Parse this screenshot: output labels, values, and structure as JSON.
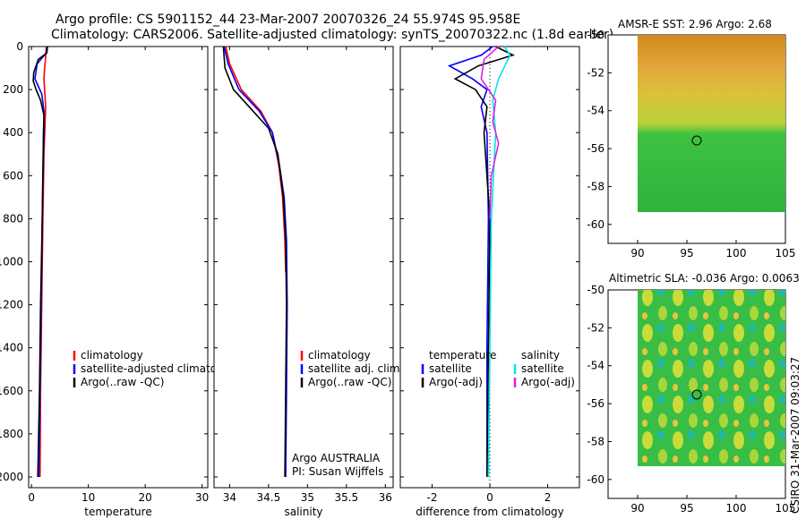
{
  "figure": {
    "title_line1": "Argo profile: CS 5901152_44 23-Mar-2007 20070326_24 55.974S 95.958E",
    "title_line2": "Climatology: CARS2006. Satellite-adjusted climatology: synTS_20070322.nc (1.8d earlier)",
    "credit": "CSIRO 31-Mar-2007 09:03:27"
  },
  "colors": {
    "climatology": "#ff0000",
    "satellite": "#0000ff",
    "argo": "#000000",
    "sal_satellite": "#00e5e5",
    "sal_argo": "#e020e0"
  },
  "chart_data": [
    {
      "type": "line",
      "id": "temperature",
      "xlabel": "temperature",
      "ylabel": "",
      "xlim": [
        -0.5,
        31
      ],
      "ylim": [
        2050,
        0
      ],
      "xticks": [
        0,
        10,
        20,
        30
      ],
      "yticks": [
        0,
        200,
        400,
        600,
        800,
        1000,
        1200,
        1400,
        1600,
        1800,
        2000
      ],
      "legend": [
        "climatology",
        "satellite-adjusted climatology",
        "Argo(..raw -QC)"
      ],
      "series": [
        {
          "name": "climatology",
          "color": "climatology",
          "points": [
            [
              2.6,
              0
            ],
            [
              2.5,
              50
            ],
            [
              2.3,
              100
            ],
            [
              2.2,
              150
            ],
            [
              2.3,
              200
            ],
            [
              2.5,
              280
            ],
            [
              2.4,
              350
            ],
            [
              2.2,
              500
            ],
            [
              2.0,
              800
            ],
            [
              1.8,
              1200
            ],
            [
              1.6,
              1600
            ],
            [
              1.5,
              2000
            ]
          ]
        },
        {
          "name": "satellite-adjusted climatology",
          "color": "satellite",
          "points": [
            [
              2.7,
              0
            ],
            [
              2.6,
              30
            ],
            [
              1.0,
              80
            ],
            [
              0.6,
              150
            ],
            [
              1.8,
              220
            ],
            [
              2.2,
              300
            ],
            [
              2.2,
              400
            ],
            [
              2.0,
              600
            ],
            [
              1.9,
              800
            ],
            [
              1.7,
              1200
            ],
            [
              1.5,
              1600
            ],
            [
              1.3,
              2000
            ]
          ]
        },
        {
          "name": "Argo(..raw -QC)",
          "color": "argo",
          "points": [
            [
              2.8,
              0
            ],
            [
              2.7,
              30
            ],
            [
              1.2,
              60
            ],
            [
              0.4,
              120
            ],
            [
              0.3,
              160
            ],
            [
              0.8,
              200
            ],
            [
              1.6,
              250
            ],
            [
              2.2,
              320
            ],
            [
              2.1,
              400
            ],
            [
              1.9,
              800
            ],
            [
              1.6,
              1200
            ],
            [
              1.4,
              1600
            ],
            [
              1.1,
              2000
            ]
          ]
        }
      ]
    },
    {
      "type": "line",
      "id": "salinity",
      "xlabel": "salinity",
      "ylabel": "",
      "xlim": [
        33.8,
        36.1
      ],
      "ylim": [
        2050,
        0
      ],
      "xticks": [
        34,
        34.5,
        35,
        35.5,
        36
      ],
      "yticks": [
        0,
        200,
        400,
        600,
        800,
        1000,
        1200,
        1400,
        1600,
        1800,
        2000
      ],
      "legend": [
        "climatology",
        "satellite adj. clim.",
        "Argo(..raw -QC)"
      ],
      "annotation": [
        "Argo AUSTRALIA",
        "PI: Susan Wijffels"
      ],
      "series": [
        {
          "name": "climatology",
          "color": "climatology",
          "points": [
            [
              33.95,
              0
            ],
            [
              34.0,
              80
            ],
            [
              34.15,
              200
            ],
            [
              34.4,
              300
            ],
            [
              34.55,
              400
            ],
            [
              34.63,
              550
            ],
            [
              34.68,
              700
            ],
            [
              34.71,
              900
            ],
            [
              34.72,
              1050
            ]
          ]
        },
        {
          "name": "satellite adj. clim.",
          "color": "satellite",
          "points": [
            [
              33.93,
              0
            ],
            [
              33.98,
              80
            ],
            [
              34.12,
              200
            ],
            [
              34.38,
              300
            ],
            [
              34.55,
              400
            ],
            [
              34.64,
              550
            ],
            [
              34.7,
              700
            ],
            [
              34.73,
              900
            ],
            [
              34.74,
              1200
            ],
            [
              34.73,
              1600
            ],
            [
              34.72,
              2000
            ]
          ]
        },
        {
          "name": "Argo(..raw -QC)",
          "color": "argo",
          "points": [
            [
              33.92,
              0
            ],
            [
              33.94,
              100
            ],
            [
              34.05,
              200
            ],
            [
              34.3,
              300
            ],
            [
              34.5,
              380
            ],
            [
              34.62,
              500
            ],
            [
              34.69,
              700
            ],
            [
              34.72,
              900
            ],
            [
              34.73,
              1200
            ],
            [
              34.72,
              1600
            ],
            [
              34.71,
              2000
            ]
          ]
        }
      ]
    },
    {
      "type": "line",
      "id": "difference",
      "xlabel": "difference from climatology",
      "ylabel": "",
      "xlim": [
        -3.1,
        3.1
      ],
      "ylim": [
        2050,
        0
      ],
      "xticks": [
        -2,
        0,
        2
      ],
      "yticks": [
        0,
        200,
        400,
        600,
        800,
        1000,
        1200,
        1400,
        1600,
        1800,
        2000
      ],
      "legend_left": [
        "temperature",
        "satellite",
        "Argo(-adj)"
      ],
      "legend_right": [
        "salinity",
        "satellite",
        "Argo(-adj)"
      ],
      "series": [
        {
          "name": "temperature satellite",
          "color": "satellite",
          "points": [
            [
              0.1,
              0
            ],
            [
              -0.3,
              40
            ],
            [
              -1.4,
              90
            ],
            [
              -0.6,
              150
            ],
            [
              -0.1,
              200
            ],
            [
              -0.3,
              280
            ],
            [
              -0.1,
              400
            ],
            [
              -0.05,
              800
            ],
            [
              -0.1,
              1400
            ],
            [
              -0.1,
              2000
            ]
          ]
        },
        {
          "name": "temperature Argo(-adj)",
          "color": "argo",
          "points": [
            [
              0.2,
              0
            ],
            [
              0.8,
              40
            ],
            [
              -0.4,
              90
            ],
            [
              -1.2,
              150
            ],
            [
              -0.5,
              200
            ],
            [
              -0.1,
              280
            ],
            [
              -0.2,
              400
            ],
            [
              0.0,
              800
            ],
            [
              -0.05,
              1400
            ],
            [
              -0.1,
              2000
            ]
          ]
        },
        {
          "name": "salinity satellite",
          "color": "sal_satellite",
          "points": [
            [
              0.5,
              0
            ],
            [
              0.7,
              40
            ],
            [
              0.3,
              150
            ],
            [
              0.1,
              250
            ],
            [
              0.2,
              400
            ],
            [
              0.05,
              800
            ],
            [
              0.0,
              1400
            ],
            [
              -0.05,
              2000
            ]
          ]
        },
        {
          "name": "salinity Argo(-adj)",
          "color": "sal_argo",
          "points": [
            [
              0.3,
              0
            ],
            [
              -0.2,
              60
            ],
            [
              -0.3,
              150
            ],
            [
              0.2,
              250
            ],
            [
              0.1,
              350
            ],
            [
              0.3,
              450
            ],
            [
              0.05,
              600
            ],
            [
              0.0,
              800
            ]
          ]
        }
      ]
    },
    {
      "type": "heatmap",
      "id": "sst-map",
      "title": "AMSR-E SST: 2.96 Argo: 2.68",
      "xlim": [
        87,
        105
      ],
      "ylim": [
        -61,
        -50
      ],
      "xticks": [
        90,
        95,
        100,
        105
      ],
      "yticks": [
        -50,
        -52,
        -54,
        -56,
        -58,
        -60
      ],
      "float_position": {
        "lon": 95.958,
        "lat": -55.974
      }
    },
    {
      "type": "heatmap",
      "id": "sla-map",
      "title": "Altimetric SLA: -0.036 Argo: 0.0063",
      "xlim": [
        87,
        105
      ],
      "ylim": [
        -61,
        -50
      ],
      "xticks": [
        90,
        95,
        100,
        105
      ],
      "yticks": [
        -50,
        -52,
        -54,
        -56,
        -58,
        -60
      ],
      "float_position": {
        "lon": 95.958,
        "lat": -55.974
      }
    }
  ]
}
